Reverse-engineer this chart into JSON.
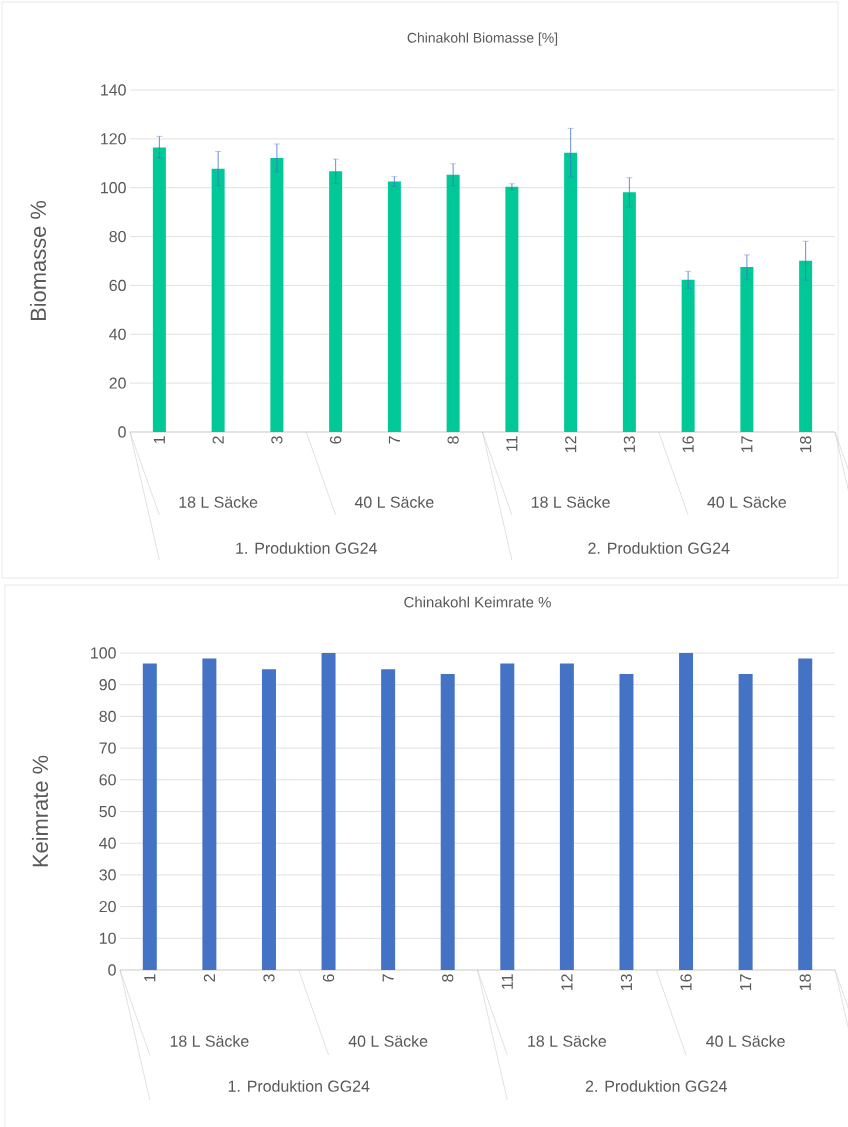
{
  "chart_data": [
    {
      "type": "bar",
      "title": "Chinakohl Biomasse [%]",
      "ylabel": "Biomasse %",
      "categories": [
        "1",
        "2",
        "3",
        "6",
        "7",
        "8",
        "11",
        "12",
        "13",
        "16",
        "17",
        "18"
      ],
      "values": [
        116.5,
        107.8,
        112.2,
        106.7,
        102.5,
        105.3,
        100.4,
        114.3,
        98.1,
        62.3,
        67.5,
        70.1
      ],
      "errors": [
        4.5,
        7,
        5.7,
        5,
        2,
        4.5,
        1.2,
        10,
        6,
        3.5,
        5,
        8
      ],
      "color": "#00c896",
      "ylim": [
        0,
        140
      ],
      "yticks": [
        0,
        20,
        40,
        60,
        80,
        100,
        120,
        140
      ],
      "grid": "y",
      "annotations": [
        "18 L Säcke",
        "40 L Säcke",
        "18 L Säcke",
        "40 L Säcke",
        "1. Produktion GG24",
        "2. Produktion GG24"
      ]
    },
    {
      "type": "bar",
      "title": "Chinakohl Keimrate %",
      "ylabel": "Keimrate %",
      "categories": [
        "1",
        "2",
        "3",
        "6",
        "7",
        "8",
        "11",
        "12",
        "13",
        "16",
        "17",
        "18"
      ],
      "values": [
        96.7,
        98.3,
        94.9,
        100,
        94.9,
        93.4,
        96.7,
        96.7,
        93.4,
        100,
        93.4,
        98.3
      ],
      "color": "#4472c4",
      "ylim": [
        0,
        100
      ],
      "yticks": [
        0,
        10,
        20,
        30,
        40,
        50,
        60,
        70,
        80,
        90,
        100
      ],
      "grid": "y",
      "annotations": [
        "18 L Säcke",
        "40 L Säcke",
        "18 L Säcke",
        "40 L Säcke",
        "1. Produktion GG24",
        "2. Produktion GG24"
      ]
    }
  ]
}
